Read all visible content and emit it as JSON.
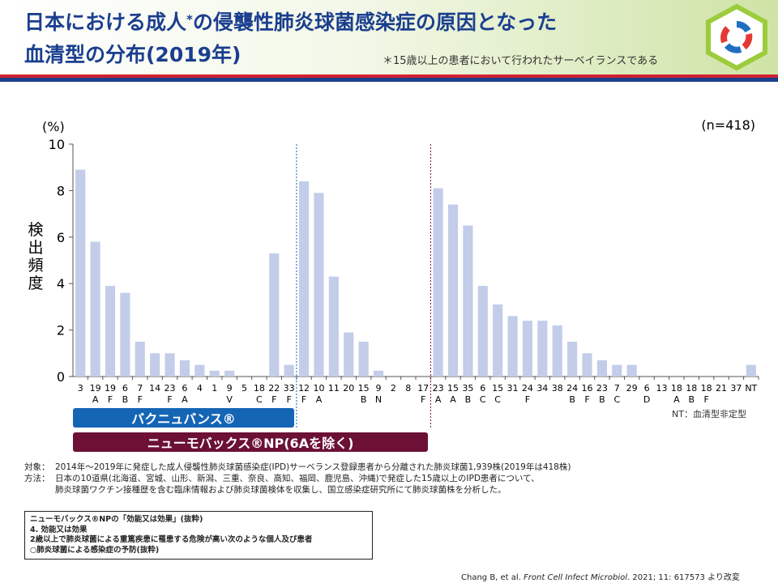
{
  "header": {
    "title_line1_a": "日本における成人",
    "title_asterisk": "*",
    "title_line1_b": "の侵襲性肺炎球菌感染症の原因となった",
    "title_line2": "血清型の分布(2019年)",
    "footnote": "＊15歳以上の患者において行われたサーベイランスである"
  },
  "colors": {
    "bar": "#c3cde9",
    "band_vaccine1": "#1565b5",
    "band_vaccine2": "#6c1035",
    "title": "#1b3f8f",
    "stripe_red": "#d22030",
    "stripe_blue": "#1a3f8c"
  },
  "chart_data": {
    "type": "bar",
    "ylabel": "検出頻度",
    "yunit": "(%)",
    "n_label": "(n=418)",
    "ylim": [
      0,
      10
    ],
    "yticks": [
      0,
      2,
      4,
      6,
      8,
      10
    ],
    "categories": [
      {
        "top": "3",
        "bottom": ""
      },
      {
        "top": "19",
        "bottom": "A"
      },
      {
        "top": "19",
        "bottom": "F"
      },
      {
        "top": "6",
        "bottom": "B"
      },
      {
        "top": "7",
        "bottom": "F"
      },
      {
        "top": "14",
        "bottom": ""
      },
      {
        "top": "23",
        "bottom": "F"
      },
      {
        "top": "6",
        "bottom": "A"
      },
      {
        "top": "4",
        "bottom": ""
      },
      {
        "top": "1",
        "bottom": ""
      },
      {
        "top": "9",
        "bottom": "V"
      },
      {
        "top": "5",
        "bottom": ""
      },
      {
        "top": "18",
        "bottom": "C"
      },
      {
        "top": "22",
        "bottom": "F"
      },
      {
        "top": "33",
        "bottom": "F"
      },
      {
        "top": "12",
        "bottom": "F"
      },
      {
        "top": "10",
        "bottom": "A"
      },
      {
        "top": "11",
        "bottom": ""
      },
      {
        "top": "20",
        "bottom": ""
      },
      {
        "top": "15",
        "bottom": "B"
      },
      {
        "top": "9",
        "bottom": "N"
      },
      {
        "top": "2",
        "bottom": ""
      },
      {
        "top": "8",
        "bottom": ""
      },
      {
        "top": "17",
        "bottom": "F"
      },
      {
        "top": "23",
        "bottom": "A"
      },
      {
        "top": "15",
        "bottom": "A"
      },
      {
        "top": "35",
        "bottom": "B"
      },
      {
        "top": "6",
        "bottom": "C"
      },
      {
        "top": "15",
        "bottom": "C"
      },
      {
        "top": "31",
        "bottom": ""
      },
      {
        "top": "24",
        "bottom": "F"
      },
      {
        "top": "34",
        "bottom": ""
      },
      {
        "top": "38",
        "bottom": ""
      },
      {
        "top": "24",
        "bottom": "B"
      },
      {
        "top": "16",
        "bottom": "F"
      },
      {
        "top": "23",
        "bottom": "B"
      },
      {
        "top": "7",
        "bottom": "C"
      },
      {
        "top": "29",
        "bottom": ""
      },
      {
        "top": "6",
        "bottom": "D"
      },
      {
        "top": "13",
        "bottom": ""
      },
      {
        "top": "18",
        "bottom": "A"
      },
      {
        "top": "18",
        "bottom": "B"
      },
      {
        "top": "18",
        "bottom": "F"
      },
      {
        "top": "21",
        "bottom": ""
      },
      {
        "top": "37",
        "bottom": ""
      },
      {
        "top": "NT",
        "bottom": ""
      }
    ],
    "values": [
      8.9,
      5.8,
      3.9,
      3.6,
      1.5,
      1.0,
      1.0,
      0.7,
      0.5,
      0.25,
      0.25,
      0,
      0,
      5.3,
      0.5,
      8.4,
      7.9,
      4.3,
      1.9,
      1.5,
      0.25,
      0,
      0,
      0,
      8.1,
      7.4,
      6.5,
      3.9,
      3.1,
      2.6,
      2.4,
      2.4,
      2.2,
      1.5,
      1.0,
      0.7,
      0.5,
      0.5,
      0,
      0,
      0,
      0,
      0,
      0,
      0,
      0.5
    ],
    "dividers_after_index": [
      14,
      23
    ]
  },
  "bands": {
    "vaccine1": "バクニュバンス®",
    "vaccine2": "ニューモバックス®NP(6Aを除く)"
  },
  "nt_note": "NT：血清型非定型",
  "notes": {
    "target_label": "対象：",
    "target_text": "2014年～2019年に発症した成人侵襲性肺炎球菌感染症(IPD)サーベランス登録患者から分離された肺炎球菌1,939株(2019年は418株)",
    "method_label": "方法：",
    "method_text1": "日本の10道県(北海道、宮城、山形、新潟、三重、奈良、高知、福岡、鹿児島、沖縄)で発症した15歳以上のIPD患者について、",
    "method_text2": "肺炎球菌ワクチン接種歴を含む臨床情報および肺炎球菌検体を収集し、国立感染症研究所にて肺炎球菌株を分析した。"
  },
  "box_note": {
    "line1": "ニューモバックス®NPの「効能又は効果」(抜粋)",
    "line2": "4. 効能又は効果",
    "line3": "2歳以上で肺炎球菌による重篤疾患に罹患する危険が高い次のような個人及び患者",
    "line4": "○肺炎球菌による感染症の予防(抜粋)"
  },
  "citation": {
    "authors": "Chang B, et al. ",
    "journal": "Front Cell Infect Microbiol",
    "rest": ". 2021; 11: 617573 より改変"
  }
}
